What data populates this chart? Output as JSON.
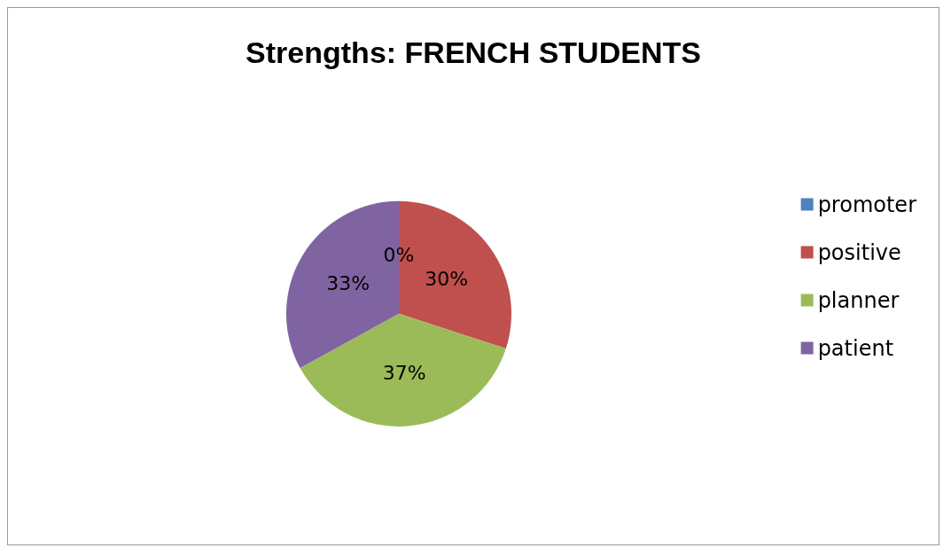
{
  "chart_data": {
    "type": "pie",
    "title": "Strengths: FRENCH STUDENTS",
    "categories": [
      "promoter",
      "positive",
      "planner",
      "patient"
    ],
    "values": [
      0,
      30,
      37,
      33
    ],
    "colors": [
      "#4f81bd",
      "#c0504d",
      "#9bbb59",
      "#8064a2"
    ],
    "value_labels": [
      "0%",
      "30%",
      "37%",
      "33%"
    ],
    "legend": "right"
  }
}
